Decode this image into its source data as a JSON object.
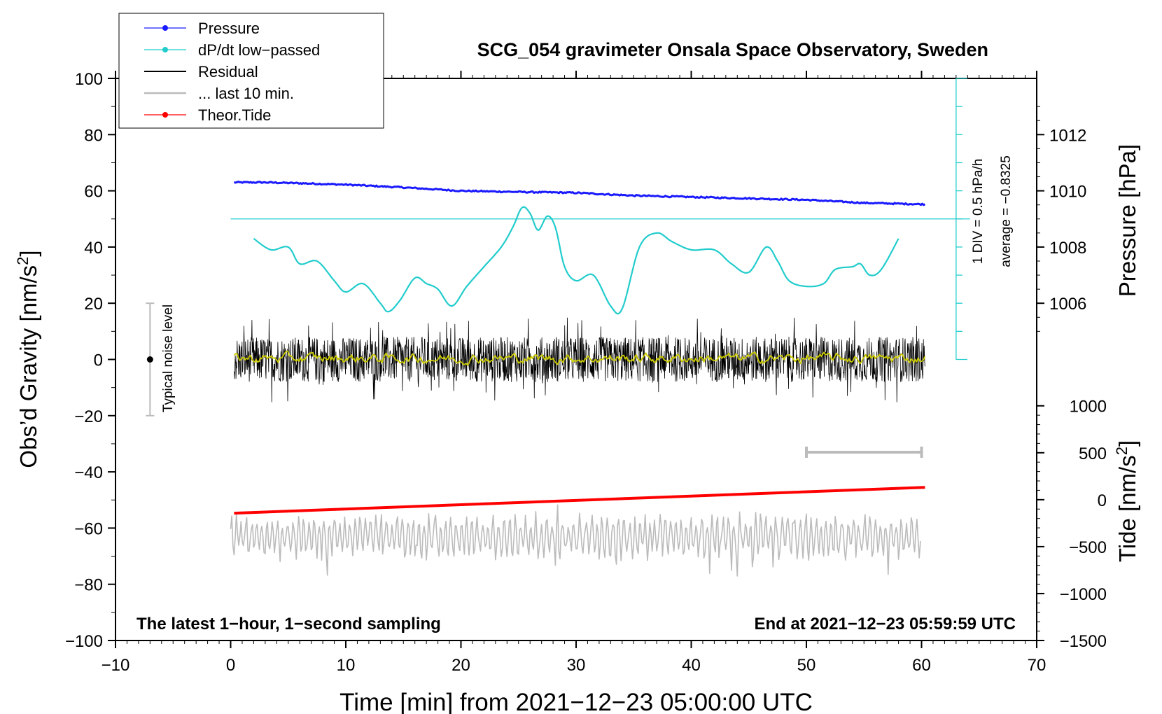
{
  "chart_data": {
    "type": "line",
    "title": "SCG_054 gravimeter Onsala Space Observatory, Sweden",
    "xlabel": "Time [min] from 2021−12−23 05:00:00 UTC",
    "ylabel_left": "Obs’d Gravity [nm/s",
    "ylabel_left_sup": "2",
    "ylabel_left_close": "]",
    "ylabel_pressure": "Pressure [hPa]",
    "ylabel_tide": "Tide [nm/s",
    "ylabel_tide_sup": "2",
    "ylabel_tide_close": "]",
    "xlim": [
      -10,
      70
    ],
    "ylim": [
      -100,
      100
    ],
    "x_ticks": [
      -10,
      0,
      10,
      20,
      30,
      40,
      50,
      60,
      70
    ],
    "x_tick_labels": [
      "−10",
      "0",
      "10",
      "20",
      "30",
      "40",
      "50",
      "60",
      "70"
    ],
    "y_ticks": [
      -100,
      -80,
      -60,
      -40,
      -20,
      0,
      20,
      40,
      60,
      80,
      100
    ],
    "y_tick_labels": [
      "−100",
      "−80",
      "−60",
      "−40",
      "−20",
      "0",
      "20",
      "40",
      "60",
      "80",
      "100"
    ],
    "pressure_axis": {
      "ticks": [
        1006,
        1008,
        1010,
        1012
      ],
      "tick_labels": [
        "1006",
        "1008",
        "1010",
        "1012"
      ],
      "gravity_at_1006": 20,
      "gravity_per_hPa": 10
    },
    "tide_axis": {
      "ticks": [
        -1500,
        -1000,
        -500,
        0,
        500,
        1000
      ],
      "tick_labels": [
        "−1500",
        "−1000",
        "−500",
        "0",
        "500",
        "1000"
      ],
      "gravity_at_minus1500": -100,
      "gravity_per_500": 16.7
    },
    "legend": [
      {
        "label": "Pressure",
        "color": "#1a1aff",
        "marker": true
      },
      {
        "label": "dP/dt low−passed",
        "color": "#22cccc",
        "marker": true
      },
      {
        "label": "Residual",
        "color": "#000000",
        "marker": false
      },
      {
        "label": "... last 10 min.",
        "color": "#bbbbbb",
        "marker": false
      },
      {
        "label": "Theor.Tide",
        "color": "#ff0000",
        "marker": true
      }
    ],
    "legend_position": "top-left",
    "annotations": {
      "bottom_left": "The latest 1−hour, 1−second sampling",
      "bottom_right": "End at 2021−12−23 05:59:59 UTC",
      "noise_label": "Typical noise level",
      "dpdt_scale": "1 DIV = 0.5 hPa/h",
      "dpdt_average": "average = −0.8325"
    },
    "noise_bar": {
      "x": -7,
      "y": 0,
      "low": -20,
      "high": 20
    },
    "last10_bar": {
      "x_start": 50,
      "x_end": 60,
      "y": -33
    },
    "dpdt_reference": {
      "x_start": 0,
      "x_end": 63,
      "y": 50
    },
    "dpdt_scale_axis": {
      "x": 63,
      "y_start": 0,
      "y_end": 100,
      "div": 10
    },
    "series": [
      {
        "name": "Pressure",
        "color": "#1a1aff",
        "x": [
          0.3,
          3,
          6,
          10,
          15,
          20,
          25,
          30,
          35,
          40,
          45,
          50,
          55,
          60.3
        ],
        "y": [
          63,
          63,
          62.7,
          62.2,
          61.2,
          60,
          59.6,
          59.3,
          58.3,
          57.8,
          57.3,
          56.8,
          55.7,
          55.2
        ]
      },
      {
        "name": "dP/dt low−passed",
        "color": "#22cccc",
        "x": [
          2,
          3.5,
          5,
          6,
          7.5,
          9,
          10,
          11.5,
          13,
          13.7,
          14.7,
          16,
          17,
          18,
          19.2,
          20.5,
          22,
          23.5,
          24.5,
          25.3,
          26,
          26.7,
          27.5,
          28.2,
          29,
          30,
          31.5,
          33,
          34,
          35.5,
          37,
          38.3,
          40,
          42,
          43.5,
          45,
          46.5,
          47.5,
          48.5,
          50,
          51.5,
          52.5,
          54,
          54.7,
          55.5,
          56.5,
          58
        ],
        "y": [
          43,
          39,
          40,
          34,
          35,
          28,
          24,
          27,
          20,
          17,
          21,
          29,
          27,
          25,
          19,
          26,
          33,
          40,
          47,
          54,
          52,
          46,
          51,
          47,
          33,
          28,
          30,
          19,
          18,
          40,
          45,
          42,
          39,
          39,
          34,
          31,
          40,
          35,
          28,
          26,
          27,
          32,
          33,
          34,
          30,
          32,
          43
        ]
      },
      {
        "name": "Residual",
        "color": "#000000",
        "x_start": 0.3,
        "x_end": 60.3,
        "mean": 0,
        "typical_amplitude": 8,
        "max_amplitude": 16
      },
      {
        "name": "Residual (smoothed)",
        "color": "#cccc00",
        "x_start": 0.3,
        "x_end": 60.3,
        "mean": 0,
        "typical_amplitude": 1.5
      },
      {
        "name": "... last 10 min.",
        "color": "#bbbbbb",
        "x_start": 0,
        "x_end": 60,
        "center_y": -63,
        "typical_amplitude": 6,
        "max_amplitude": 15
      },
      {
        "name": "Theor.Tide",
        "color": "#ff0000",
        "x": [
          0.3,
          60.3
        ],
        "y": [
          -54.7,
          -45.5
        ]
      }
    ]
  }
}
